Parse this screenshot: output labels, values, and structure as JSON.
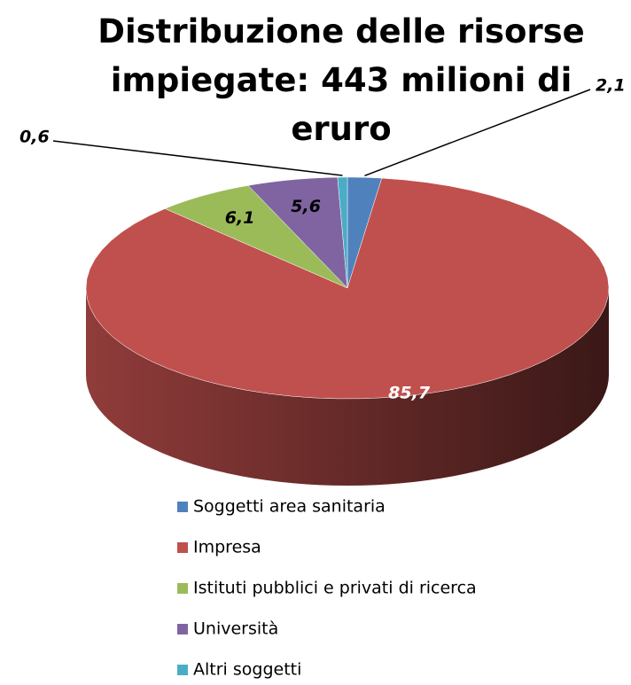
{
  "chart_data": {
    "type": "pie",
    "title": "Distribuzione delle risorse impiegate: 443 milioni di eruro",
    "categories": [
      "Soggetti area sanitaria",
      "Impresa",
      "Istituti pubblici e privati di ricerca",
      "Università",
      "Altri soggetti"
    ],
    "values": [
      2.1,
      85.7,
      6.1,
      5.6,
      0.6
    ],
    "value_labels": [
      "2,1",
      "85,7",
      "6,1",
      "5,6",
      "0,6"
    ],
    "colors": [
      "#4f81bd",
      "#c0504d",
      "#9bbb59",
      "#8064a2",
      "#4bacc6"
    ],
    "legend": "bottom"
  }
}
